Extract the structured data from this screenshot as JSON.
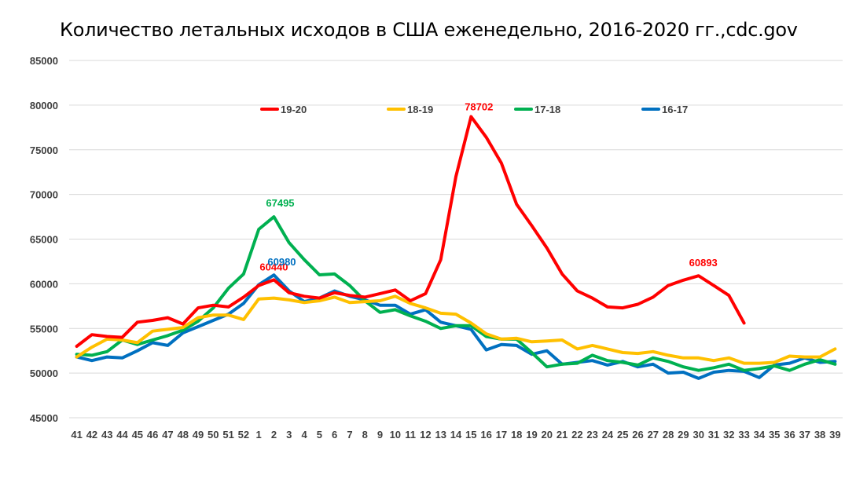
{
  "chart_data": {
    "type": "line",
    "title": "Количество летальных исходов в США еженедельно, 2016-2020 гг.,cdc.gov",
    "xlabel": "",
    "ylabel": "",
    "ylim": [
      45000,
      85000
    ],
    "yticks": [
      45000,
      50000,
      55000,
      60000,
      65000,
      70000,
      75000,
      80000,
      85000
    ],
    "grid": true,
    "legend_position": "top",
    "categories": [
      "41",
      "42",
      "43",
      "44",
      "45",
      "46",
      "47",
      "48",
      "49",
      "50",
      "51",
      "52",
      "1",
      "2",
      "3",
      "4",
      "5",
      "6",
      "7",
      "8",
      "9",
      "10",
      "11",
      "12",
      "13",
      "14",
      "15",
      "16",
      "17",
      "18",
      "19",
      "20",
      "21",
      "22",
      "23",
      "24",
      "25",
      "26",
      "27",
      "28",
      "29",
      "30",
      "31",
      "32",
      "33",
      "34",
      "35",
      "36",
      "37",
      "38",
      "39"
    ],
    "series": [
      {
        "name": "19-20",
        "color": "#ff0000",
        "values": [
          53000,
          54300,
          54100,
          54000,
          55700,
          55900,
          56200,
          55500,
          57300,
          57600,
          57400,
          58500,
          59800,
          60440,
          59000,
          58600,
          58400,
          59000,
          58700,
          58500,
          58900,
          59300,
          58100,
          58900,
          62700,
          72000,
          78702,
          76400,
          73500,
          68900,
          66500,
          64000,
          61100,
          59200,
          58400,
          57400,
          57300,
          57700,
          58500,
          59800,
          60400,
          60893,
          59800,
          58700,
          55600,
          null,
          null,
          null,
          null,
          null,
          null
        ],
        "labels": [
          {
            "index": 13,
            "text": "60440"
          },
          {
            "index": 26,
            "text": "78702"
          },
          {
            "index": 41,
            "text": "60893"
          }
        ]
      },
      {
        "name": "18-19",
        "color": "#ffc000",
        "values": [
          51800,
          52900,
          53800,
          53700,
          53400,
          54700,
          54900,
          55100,
          56200,
          56500,
          56500,
          56000,
          58300,
          58400,
          58200,
          57900,
          58100,
          58500,
          57900,
          58000,
          58100,
          58600,
          57800,
          57300,
          56700,
          56600,
          55600,
          54400,
          53800,
          53900,
          53500,
          53600,
          53700,
          52700,
          53100,
          52700,
          52300,
          52200,
          52400,
          52000,
          51700,
          51700,
          51400,
          51700,
          51100,
          51100,
          51200,
          51900,
          51800,
          51800,
          52700
        ],
        "labels": []
      },
      {
        "name": "17-18",
        "color": "#00b050",
        "values": [
          52100,
          52000,
          52400,
          53700,
          53200,
          53700,
          54200,
          54800,
          55800,
          57300,
          59500,
          61100,
          66100,
          67495,
          64600,
          62700,
          61000,
          61100,
          59800,
          58100,
          56800,
          57100,
          56400,
          55800,
          55000,
          55300,
          55300,
          54100,
          53800,
          53800,
          52300,
          50700,
          51000,
          51100,
          52000,
          51400,
          51200,
          50900,
          51700,
          51300,
          50700,
          50300,
          50600,
          51000,
          50300,
          50500,
          50800,
          50300,
          51000,
          51500,
          51000
        ],
        "labels": [
          {
            "index": 13,
            "text": "67495"
          }
        ]
      },
      {
        "name": "16-17",
        "color": "#0070c0",
        "values": [
          51800,
          51400,
          51800,
          51700,
          52500,
          53400,
          53100,
          54500,
          55200,
          55900,
          56600,
          57800,
          59900,
          60980,
          59200,
          58000,
          58400,
          59200,
          58600,
          58200,
          57600,
          57600,
          56600,
          57100,
          55700,
          55300,
          54900,
          52600,
          53200,
          53100,
          52100,
          52500,
          51000,
          51200,
          51400,
          50900,
          51300,
          50700,
          51000,
          50000,
          50100,
          49400,
          50100,
          50300,
          50200,
          49500,
          50900,
          51100,
          51700,
          51200,
          51300
        ],
        "labels": [
          {
            "index": 13,
            "text": "60980"
          }
        ]
      }
    ]
  }
}
